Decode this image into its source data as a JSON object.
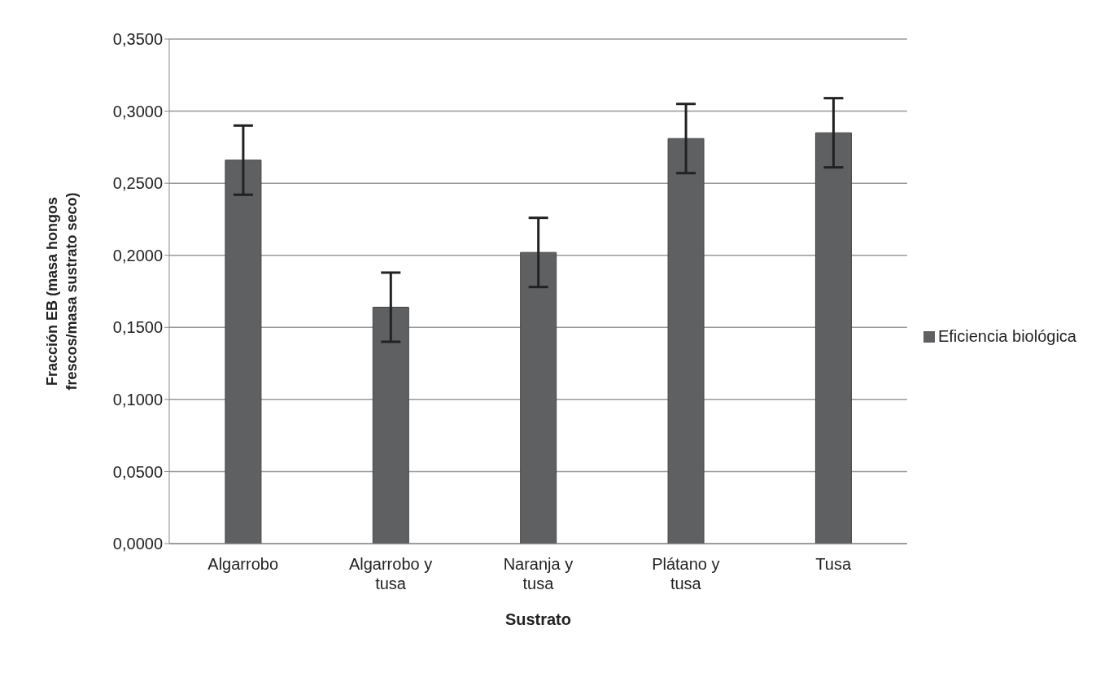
{
  "chart_data": {
    "type": "bar",
    "xlabel": "Sustrato",
    "ylabel": "Fracción EB (masa hongos frescos/masa sustrato seco)",
    "categories": [
      "Algarrobo",
      "Algarrobo y tusa",
      "Naranja y tusa",
      "Plátano y tusa",
      "Tusa"
    ],
    "series": [
      {
        "name": "Eficiencia biológica",
        "color": "#5f6062",
        "values": [
          0.266,
          0.164,
          0.202,
          0.281,
          0.285
        ],
        "errors": [
          0.024,
          0.024,
          0.024,
          0.024,
          0.024
        ]
      }
    ],
    "ylim": [
      0,
      0.35
    ],
    "yticks": [
      {
        "value": 0,
        "label": "0,0000"
      },
      {
        "value": 0.05,
        "label": "0,0500"
      },
      {
        "value": 0.1,
        "label": "0,1000"
      },
      {
        "value": 0.15,
        "label": "0,1500"
      },
      {
        "value": 0.2,
        "label": "0,2000"
      },
      {
        "value": 0.25,
        "label": "0,2500"
      },
      {
        "value": 0.3,
        "label": "0,3000"
      },
      {
        "value": 0.35,
        "label": "0,3500"
      }
    ],
    "grid": "y",
    "legend": "right"
  }
}
